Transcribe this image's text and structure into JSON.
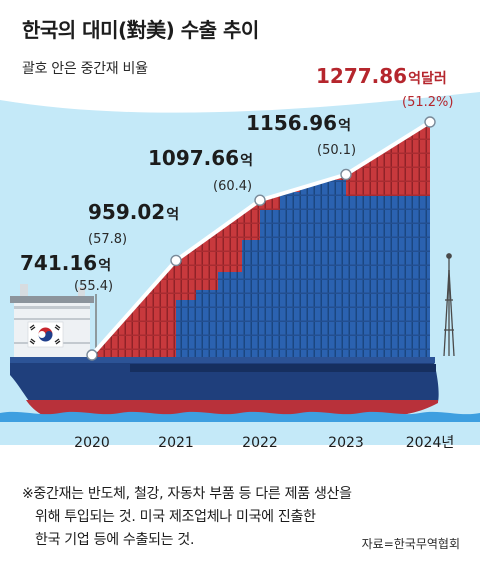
{
  "header": {
    "title": "한국의 대미(對美) 수출 추이",
    "subtitle": "괄호 안은 중간재 비율"
  },
  "chart_data": {
    "type": "line",
    "title": "한국의 대미(對美) 수출 추이",
    "subtitle": "괄호 안은 중간재 비율",
    "categories": [
      "2020",
      "2021",
      "2022",
      "2023",
      "2024년"
    ],
    "value_labels": [
      "741.16",
      "959.02",
      "1097.66",
      "1156.96",
      "1277.86"
    ],
    "unit_labels": [
      "억",
      "억",
      "억",
      "억",
      "억달러"
    ],
    "ratio_labels": [
      "(55.4)",
      "(57.8)",
      "(60.4)",
      "(50.1)",
      "(51.2%)"
    ],
    "series": [
      {
        "values": [
          741.16,
          959.02,
          1097.66,
          1156.96,
          1277.86
        ]
      },
      {
        "values": [
          55.4,
          57.8,
          60.4,
          50.1,
          51.2
        ]
      }
    ],
    "colors": {
      "line": "#ffffff",
      "last_value": "#b5262d",
      "ship_hull": "#1f3f7c",
      "container_red": "#c8393d",
      "container_blue": "#2b62b0",
      "sky": "#c4e9f8",
      "sea": "#3e9fe0"
    }
  },
  "footnote": {
    "line1": "※중간재는 반도체, 철강, 자동차 부품 등 다른 제품 생산을",
    "line2": "위해 투입되는 것. 미국 제조업체나 미국에 진출한",
    "line3": "한국 기업 등에 수출되는 것."
  },
  "source": "자료=한국무역협회"
}
